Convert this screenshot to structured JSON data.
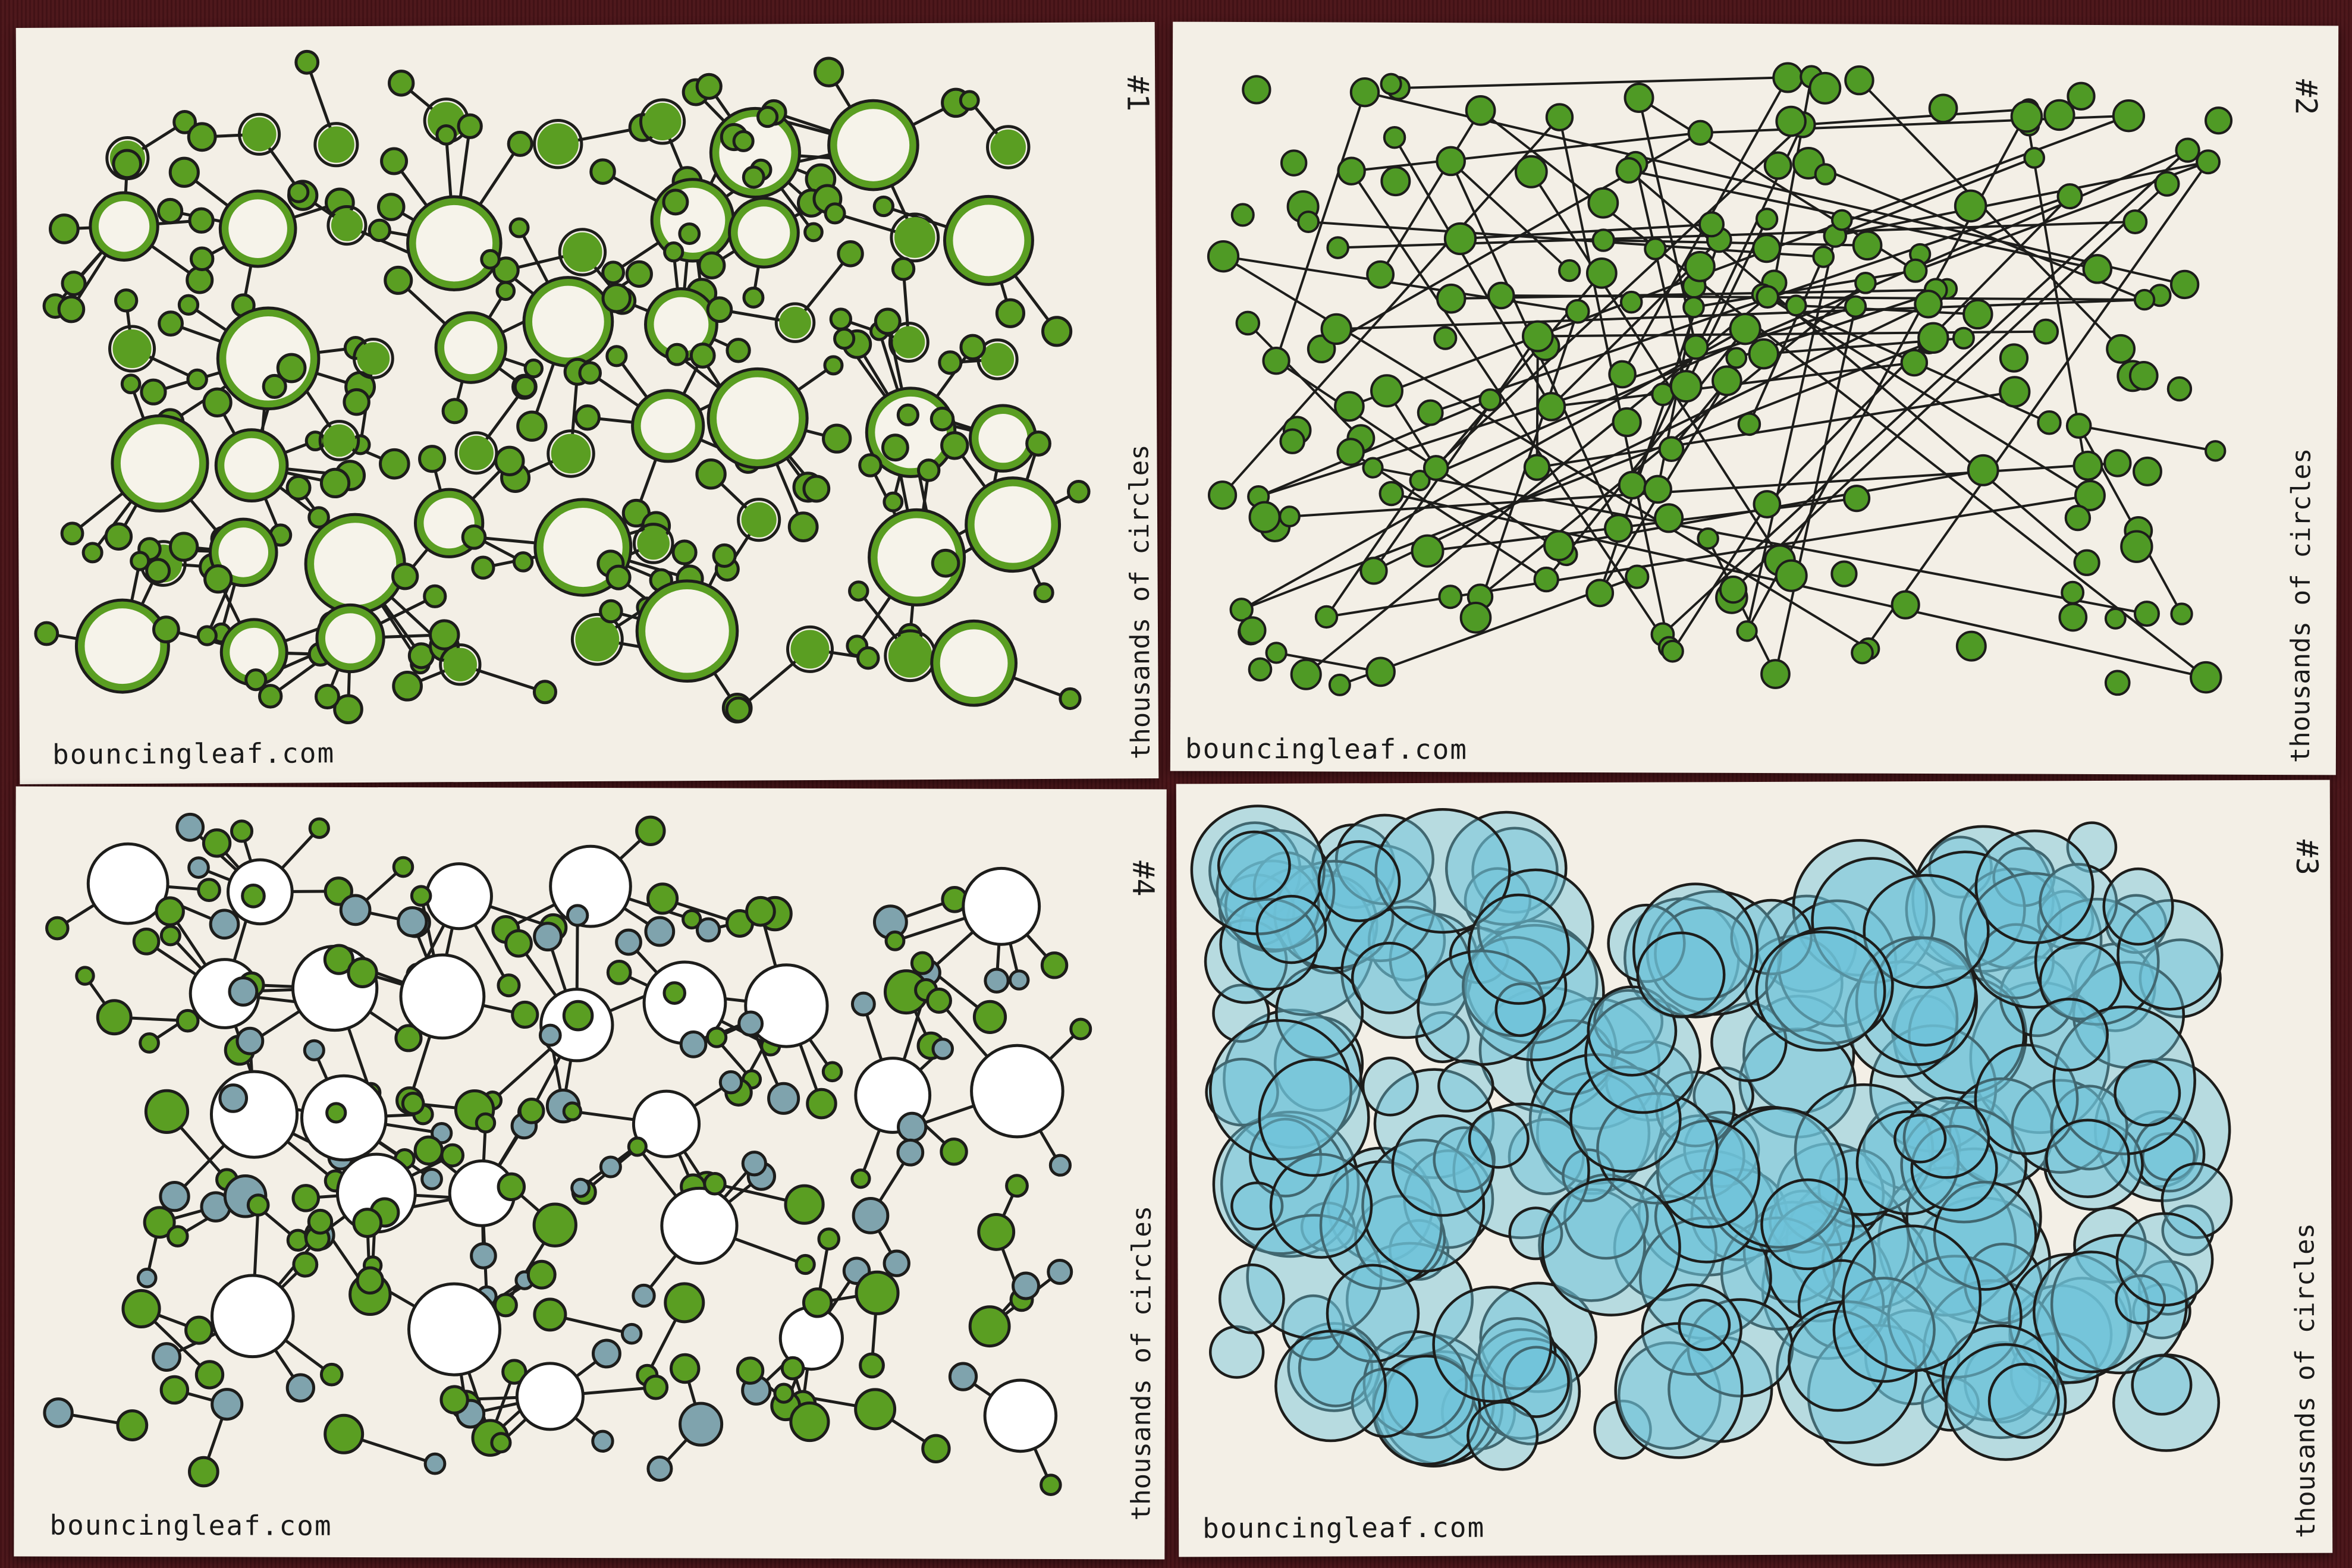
{
  "cards": [
    {
      "id": "card-1",
      "number": "#1",
      "caption": "thousands of circles",
      "site": "bouncingleaf.com",
      "palette": "green-rings",
      "fill": "#5a9e22",
      "ink": "#1d1d1b"
    },
    {
      "id": "card-2",
      "number": "#2",
      "caption": "thousands of circles",
      "site": "bouncingleaf.com",
      "palette": "green-dots-lines",
      "fill": "#4f9a25",
      "ink": "#1d1d1b"
    },
    {
      "id": "card-4",
      "number": "#4",
      "caption": "thousands of circles",
      "site": "bouncingleaf.com",
      "palette": "mixed-open",
      "fill": "#5a9e22",
      "alt_fill": "#7fa3ad",
      "ink": "#1d1d1b"
    },
    {
      "id": "card-3",
      "number": "#3",
      "caption": "thousands of circles",
      "site": "bouncingleaf.com",
      "palette": "blue-overlap",
      "fill": "#6fc3d9",
      "ink": "#1d1d1b"
    }
  ]
}
